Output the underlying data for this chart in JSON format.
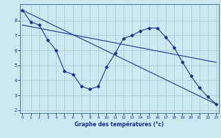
{
  "xlabel": "Graphe des températures (°c)",
  "background_color": "#cce8f0",
  "grid_color": "#aac8d8",
  "line_color": "#1530a0",
  "line1_x": [
    0,
    1,
    2,
    3,
    4,
    5,
    6,
    7,
    8,
    9,
    10,
    11,
    12,
    13,
    14,
    15,
    16,
    17,
    18,
    19,
    20,
    21,
    22,
    23
  ],
  "line1_y": [
    8.7,
    7.9,
    7.7,
    6.7,
    6.0,
    4.6,
    4.4,
    3.6,
    3.4,
    3.6,
    4.9,
    5.8,
    6.8,
    7.0,
    7.3,
    7.5,
    7.5,
    6.9,
    6.2,
    5.2,
    4.3,
    3.5,
    2.9,
    2.4
  ],
  "line2_x": [
    0,
    23
  ],
  "line2_y": [
    8.7,
    2.4
  ],
  "line3_x": [
    0,
    23
  ],
  "line3_y": [
    7.7,
    5.2
  ],
  "xlim": [
    -0.3,
    23.3
  ],
  "ylim": [
    1.8,
    9.1
  ],
  "xticks": [
    0,
    1,
    2,
    3,
    4,
    5,
    6,
    7,
    8,
    9,
    10,
    11,
    12,
    13,
    14,
    15,
    16,
    17,
    18,
    19,
    20,
    21,
    22,
    23
  ],
  "yticks": [
    2,
    3,
    4,
    5,
    6,
    7,
    8
  ]
}
